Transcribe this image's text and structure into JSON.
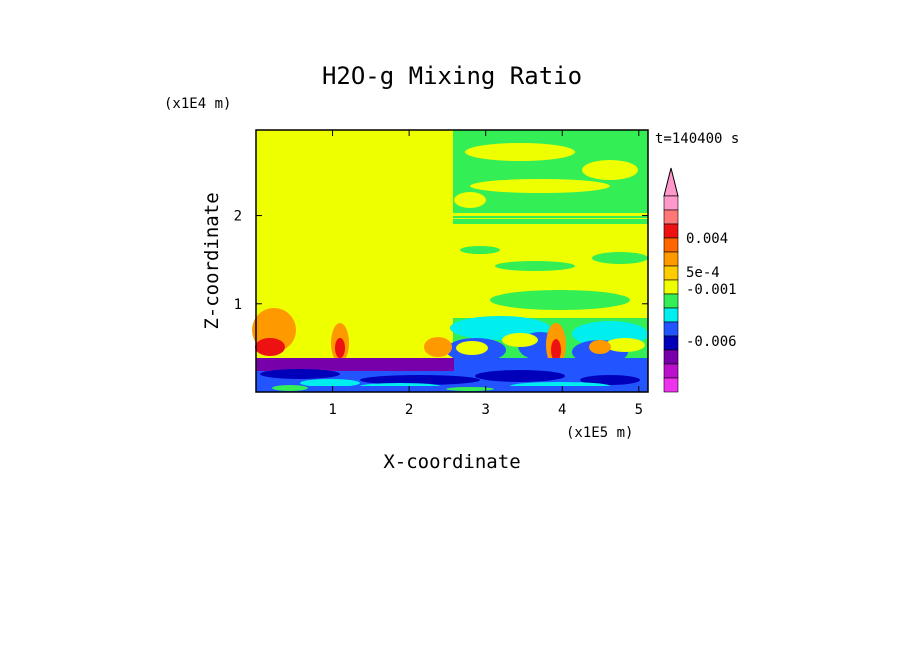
{
  "chart_data": {
    "type": "heatmap",
    "title": "H2O-g Mixing Ratio",
    "xlabel": "X-coordinate",
    "ylabel": "Z-coordinate",
    "x_unit": "(x1E5 m)",
    "y_unit": "(x1E4 m)",
    "time_label": "t=140400 s",
    "xlim": [
      0,
      5.12
    ],
    "ylim": [
      0,
      2.97
    ],
    "x_ticks": [
      "1",
      "2",
      "3",
      "4",
      "5"
    ],
    "y_ticks": [
      "1",
      "2"
    ],
    "colorbar": {
      "labels": [
        "0.004",
        "5e-4",
        "-0.001",
        "-0.006"
      ],
      "colors": [
        "#ff99cc",
        "#ff7777",
        "#ee1111",
        "#ff6600",
        "#ff9900",
        "#ffcc00",
        "#eeff00",
        "#33ee55",
        "#00eeee",
        "#2255ff",
        "#0000bb",
        "#7700aa",
        "#bb11cc",
        "#ee33ee"
      ],
      "extend": "max"
    },
    "colors": {
      "yellow": "#eeff00",
      "green": "#33ee55",
      "cyan": "#00eeee",
      "blue": "#2255ff",
      "darkblue": "#0000bb",
      "purple": "#7700aa",
      "orange": "#ff9900",
      "red": "#ee1111"
    }
  }
}
